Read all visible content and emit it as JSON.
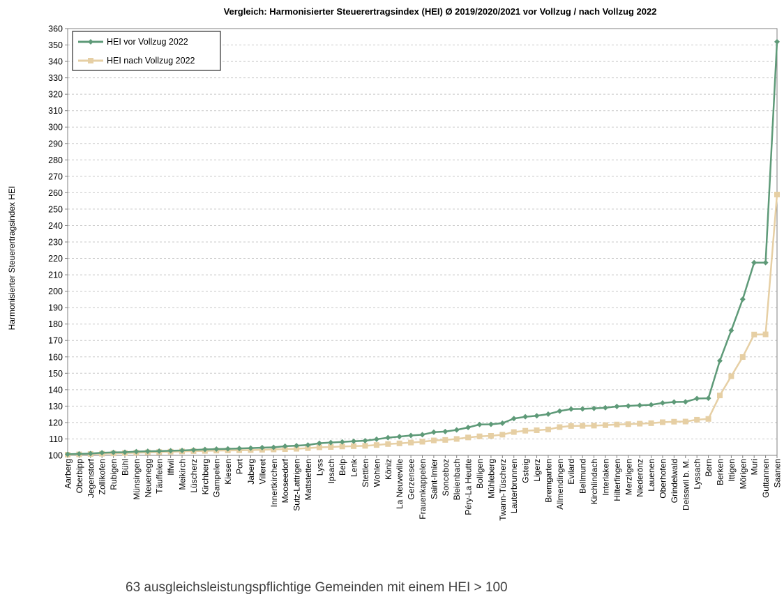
{
  "chart_data": {
    "type": "line",
    "title": "Vergleich: Harmonisierter Steuerertragsindex (HEI) Ø 2019/2020/2021 vor Vollzug  /  nach Vollzug 2022",
    "ylabel": "Harmonisierter Steuerertragsindex HEI",
    "xlabel": "",
    "ylim": [
      100,
      360
    ],
    "ystep": 10,
    "grid": true,
    "legend_position": "top-left",
    "categories": [
      "Aarberg",
      "Oberbipp",
      "Jegenstorf",
      "Zollikofen",
      "Rubigen",
      "Bühl",
      "Münsingen",
      "Neuenegg",
      "Täuffelen",
      "Iffwil",
      "Meikirch",
      "Lüscherz",
      "Kirchberg",
      "Gampelen",
      "Kiesen",
      "Port",
      "Jaberg",
      "Villeret",
      "Innertkirchen",
      "Mooseedorf",
      "Sutz-Lattrigen",
      "Mattstetten",
      "Lyss",
      "Ipsach",
      "Belp",
      "Lenk",
      "Stettlen",
      "Wohlen",
      "Köniz",
      "La Neuveville",
      "Gerzensee",
      "Frauenkappelen",
      "Saint-Imier",
      "Sonceboz",
      "Bleienbach",
      "Péry-La Heutte",
      "Bolligen",
      "Mühleberg",
      "Twann-Tüscherz",
      "Lauterbrunnen",
      "Gsteig",
      "Ligerz",
      "Bremgarten",
      "Allmendingen",
      "Evilard",
      "Bellmund",
      "Kirchlindach",
      "Interlaken",
      "Hilterfingen",
      "Merzligen",
      "Niederönz",
      "Lauenen",
      "Oberhofen",
      "Grindelwald",
      "Deisswil b. M.",
      "Lyssach",
      "Bern",
      "Berken",
      "Ittigen",
      "Mörigen",
      "Muri",
      "Guttannen",
      "Saanen"
    ],
    "series": [
      {
        "name": "HEI vor Vollzug 2022",
        "color": "#5e9a78",
        "marker": "diamond",
        "values": [
          100.7,
          100.9,
          101.1,
          101.6,
          101.8,
          101.9,
          102.3,
          102.5,
          102.6,
          102.8,
          103.0,
          103.3,
          103.6,
          103.8,
          104.0,
          104.2,
          104.4,
          104.7,
          104.9,
          105.6,
          105.9,
          106.3,
          107.4,
          107.8,
          108.2,
          108.6,
          108.9,
          109.8,
          110.8,
          111.4,
          112.1,
          112.6,
          114.1,
          114.5,
          115.5,
          117.0,
          118.8,
          118.9,
          119.6,
          122.4,
          123.5,
          124.1,
          125.1,
          127.0,
          128.2,
          128.3,
          128.6,
          129.0,
          129.8,
          130.1,
          130.5,
          130.8,
          131.9,
          132.5,
          132.6,
          134.6,
          134.8,
          157.6,
          176.1,
          195.1,
          217.4,
          217.4,
          352.0
        ]
      },
      {
        "name": "HEI nach Vollzug 2022",
        "color": "#e6cfa4",
        "marker": "square",
        "values": [
          100.4,
          100.6,
          100.8,
          101.0,
          101.2,
          101.4,
          101.6,
          101.8,
          102.0,
          102.2,
          102.4,
          102.6,
          102.7,
          102.9,
          103.0,
          103.1,
          103.2,
          103.4,
          103.6,
          103.8,
          104.0,
          104.4,
          104.9,
          105.1,
          105.4,
          105.6,
          105.8,
          106.3,
          106.9,
          107.3,
          107.8,
          108.3,
          109.1,
          109.4,
          110.0,
          110.9,
          111.6,
          111.9,
          112.6,
          114.2,
          115.0,
          115.3,
          115.8,
          117.2,
          117.9,
          118.0,
          118.1,
          118.4,
          118.8,
          119.0,
          119.3,
          119.6,
          120.2,
          120.5,
          120.6,
          121.7,
          122.2,
          136.5,
          148.2,
          159.9,
          173.6,
          173.7,
          258.9
        ]
      }
    ]
  },
  "caption": "63 ausgleichsleistungspflichtige Gemeinden mit einem HEI > 100"
}
